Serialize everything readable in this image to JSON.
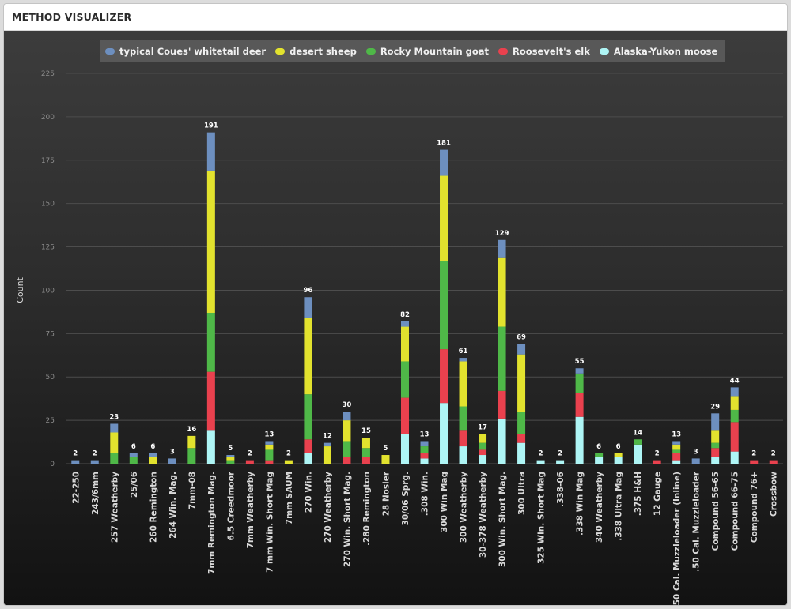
{
  "panel": {
    "title": "METHOD VISUALIZER"
  },
  "chart_data": {
    "type": "bar",
    "stacked": true,
    "ylabel": "Count",
    "ylim": [
      0,
      225
    ],
    "yticks": [
      0,
      25,
      50,
      75,
      100,
      125,
      150,
      175,
      200,
      225
    ],
    "grid": true,
    "legend_position": "top-center",
    "categories": [
      "22-250",
      "243/6mm",
      "257 Weatherby",
      "25/06",
      "260 Remington",
      "264 Win. Mag.",
      "7mm-08",
      "7mm Remington Mag.",
      "6.5 Creedmoor",
      "7mm Weatherby",
      "7 mm Win. Short Mag",
      "7mm SAUM",
      "270 Win.",
      "270 Weatherby",
      "270 Win. Short Mag.",
      ".280 Remington",
      "28 Nosler",
      "30/06 Sprg.",
      ".308 Win.",
      "300 Win Mag",
      "300 Weatherby",
      "30-378 Weatherby",
      "300 Win. Short Mag.",
      "300 Ultra",
      "325 Win. Short Mag",
      ".338-06",
      ".338 Win Mag",
      "340 Weatherby",
      ".338 Ultra Mag",
      ".375 H&H",
      "12 Gauge",
      ".50 Cal. Muzzleloader (Inline)",
      ".50 Cal. Muzzleloader",
      "Compound 56-65",
      "Compound 66-75",
      "Compound 76+",
      "Crossbow"
    ],
    "totals": [
      2,
      2,
      23,
      6,
      6,
      3,
      16,
      191,
      5,
      2,
      13,
      2,
      96,
      12,
      30,
      15,
      5,
      82,
      13,
      181,
      61,
      17,
      129,
      69,
      2,
      2,
      55,
      6,
      6,
      14,
      2,
      13,
      3,
      29,
      44,
      2,
      2
    ],
    "series": [
      {
        "name": "Alaska-Yukon moose",
        "color": "#aef5f5",
        "values": [
          0,
          0,
          0,
          0,
          0,
          0,
          0,
          19,
          0,
          0,
          0,
          0,
          6,
          0,
          0,
          0,
          0,
          17,
          3,
          35,
          10,
          5,
          26,
          12,
          2,
          2,
          27,
          4,
          4,
          11,
          0,
          2,
          0,
          4,
          7,
          0,
          0
        ]
      },
      {
        "name": "Roosevelt's elk",
        "color": "#e9414e",
        "values": [
          0,
          0,
          0,
          0,
          0,
          0,
          0,
          34,
          0,
          2,
          2,
          0,
          8,
          0,
          4,
          4,
          0,
          21,
          3,
          31,
          9,
          3,
          16,
          5,
          0,
          0,
          14,
          0,
          0,
          0,
          2,
          4,
          0,
          5,
          17,
          2,
          2
        ]
      },
      {
        "name": "Rocky Mountain goat",
        "color": "#4fb848",
        "values": [
          0,
          0,
          6,
          4,
          0,
          0,
          9,
          34,
          2,
          0,
          6,
          0,
          26,
          0,
          9,
          5,
          0,
          21,
          4,
          51,
          14,
          4,
          37,
          13,
          0,
          0,
          11,
          2,
          0,
          3,
          0,
          2,
          0,
          3,
          7,
          0,
          0
        ]
      },
      {
        "name": "desert sheep",
        "color": "#e2e22e",
        "values": [
          0,
          0,
          12,
          0,
          4,
          0,
          7,
          82,
          2,
          0,
          3,
          2,
          44,
          10,
          12,
          6,
          5,
          20,
          0,
          49,
          26,
          5,
          40,
          33,
          0,
          0,
          0,
          0,
          2,
          0,
          0,
          3,
          0,
          7,
          8,
          0,
          0
        ]
      },
      {
        "name": "typical Coues' whitetail deer",
        "color": "#6d8fbf",
        "values": [
          2,
          2,
          5,
          2,
          2,
          3,
          0,
          22,
          1,
          0,
          2,
          0,
          12,
          2,
          5,
          0,
          0,
          3,
          3,
          15,
          2,
          0,
          10,
          6,
          0,
          0,
          3,
          0,
          0,
          0,
          0,
          2,
          3,
          10,
          5,
          0,
          0
        ]
      }
    ]
  },
  "legend_order": [
    "typical Coues' whitetail deer",
    "desert sheep",
    "Rocky Mountain goat",
    "Roosevelt's elk",
    "Alaska-Yukon moose"
  ],
  "colors": {
    "axis_text": "#d9d9d9",
    "tick_text": "#8a8a8a",
    "grid": "#4d4d4d",
    "legend_bg": "#585858"
  }
}
